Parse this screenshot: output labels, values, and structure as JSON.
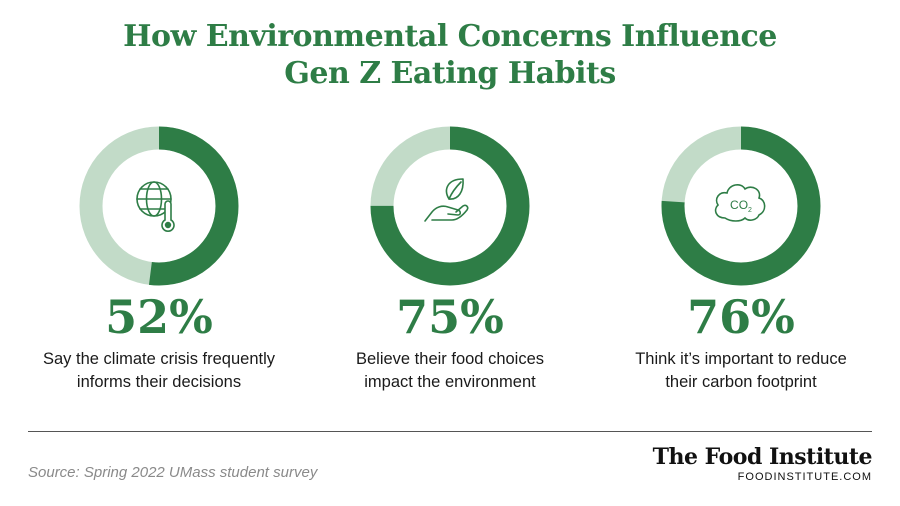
{
  "title_lines": [
    "How Environmental Concerns Influence",
    "Gen Z Eating Habits"
  ],
  "colors": {
    "accent": "#2e7d46",
    "track": "#c2dbc8",
    "icon": "#2e7d46"
  },
  "chart_data": {
    "type": "donut",
    "title": "How Environmental Concerns Influence Gen Z Eating Habits",
    "items": [
      {
        "value": 52,
        "label": "52%",
        "desc_lines": [
          "Say the climate crisis frequently",
          "informs their decisions"
        ],
        "icon": "globe-thermometer-icon"
      },
      {
        "value": 75,
        "label": "75%",
        "desc_lines": [
          "Believe their food choices",
          "impact the environment"
        ],
        "icon": "hand-leaf-icon"
      },
      {
        "value": 76,
        "label": "76%",
        "desc_lines": [
          "Think it’s important to reduce",
          "their carbon footprint"
        ],
        "icon": "co2-cloud-icon"
      }
    ]
  },
  "footer": {
    "source": "Source: Spring 2022 UMass student survey",
    "brand_name": "The Food Institute",
    "brand_url": "FOODINSTITUTE.COM"
  }
}
